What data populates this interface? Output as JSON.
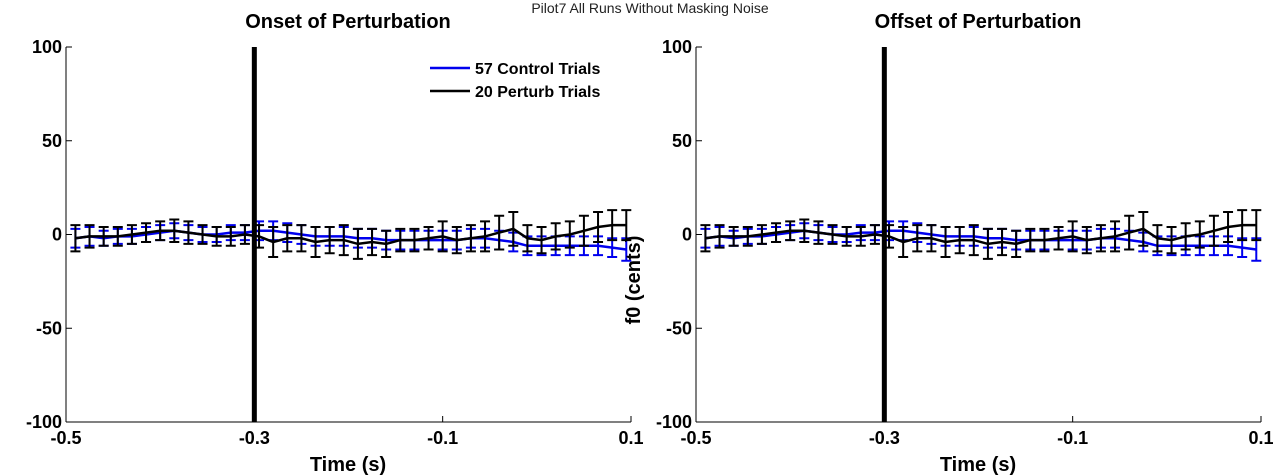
{
  "figure": {
    "suptitle": "Pilot7 All Runs Without Masking Noise"
  },
  "colors": {
    "control": "#0000ee",
    "perturb": "#000000",
    "axis": "#000000",
    "marker": "#000000"
  },
  "chart_data": [
    {
      "type": "line",
      "title": "Onset of Perturbation",
      "xlabel": "Time (s)",
      "ylabel": "f0 (cents)",
      "xlim": [
        -0.5,
        0.1
      ],
      "ylim": [
        -100,
        100
      ],
      "xticks": [
        -0.5,
        -0.3,
        -0.1,
        0.1
      ],
      "xtick_labels": [
        "-0.5",
        "-0.3",
        "-0.1",
        "0.1"
      ],
      "yticks": [
        -100,
        -50,
        0,
        50,
        100
      ],
      "ytick_labels": [
        "-100",
        "-50",
        "0",
        "50",
        "100"
      ],
      "vline_x": -0.3,
      "legend": {
        "position": "top-center",
        "entries": [
          "57 Control Trials",
          "20 Perturb Trials"
        ]
      },
      "series": [
        {
          "name": "57 Control Trials",
          "x": [
            -0.49,
            -0.475,
            -0.46,
            -0.445,
            -0.43,
            -0.415,
            -0.4,
            -0.385,
            -0.37,
            -0.355,
            -0.34,
            -0.325,
            -0.31,
            -0.295,
            -0.28,
            -0.265,
            -0.25,
            -0.235,
            -0.22,
            -0.205,
            -0.19,
            -0.175,
            -0.16,
            -0.145,
            -0.13,
            -0.115,
            -0.1,
            -0.085,
            -0.07,
            -0.055,
            -0.04,
            -0.025,
            -0.01,
            0.005,
            0.02,
            0.035,
            0.05,
            0.065,
            0.08,
            0.095
          ],
          "y": [
            -2,
            -1,
            -2,
            -1,
            -1,
            0,
            1,
            2,
            1,
            0,
            0,
            1,
            1,
            2,
            2,
            1,
            0,
            -1,
            -1,
            -1,
            -2,
            -2,
            -3,
            -3,
            -3,
            -3,
            -3,
            -3,
            -2,
            -2,
            -3,
            -4,
            -6,
            -6,
            -6,
            -6,
            -6,
            -6,
            -7,
            -8
          ],
          "err": [
            5,
            5,
            4,
            4,
            4,
            4,
            4,
            4,
            4,
            4,
            4,
            4,
            4,
            5,
            5,
            5,
            5,
            5,
            5,
            5,
            5,
            5,
            5,
            5,
            5,
            5,
            5,
            5,
            5,
            5,
            5,
            5,
            5,
            5,
            5,
            5,
            5,
            5,
            5,
            6
          ]
        },
        {
          "name": "20 Perturb Trials",
          "x": [
            -0.49,
            -0.475,
            -0.46,
            -0.445,
            -0.43,
            -0.415,
            -0.4,
            -0.385,
            -0.37,
            -0.355,
            -0.34,
            -0.325,
            -0.31,
            -0.295,
            -0.28,
            -0.265,
            -0.25,
            -0.235,
            -0.22,
            -0.205,
            -0.19,
            -0.175,
            -0.16,
            -0.145,
            -0.13,
            -0.115,
            -0.1,
            -0.085,
            -0.07,
            -0.055,
            -0.04,
            -0.025,
            -0.01,
            0.005,
            0.02,
            0.035,
            0.05,
            0.065,
            0.08,
            0.095
          ],
          "y": [
            -2,
            -1,
            -1,
            -1,
            0,
            1,
            2,
            2,
            1,
            0,
            -1,
            -1,
            0,
            -1,
            -4,
            -2,
            -2,
            -4,
            -3,
            -3,
            -5,
            -4,
            -5,
            -3,
            -3,
            -2,
            -1,
            -3,
            -2,
            -1,
            1,
            3,
            -2,
            -3,
            -1,
            0,
            2,
            4,
            5,
            5
          ],
          "err": [
            7,
            6,
            5,
            5,
            5,
            5,
            5,
            6,
            6,
            5,
            5,
            5,
            5,
            6,
            8,
            7,
            7,
            8,
            7,
            8,
            8,
            7,
            7,
            6,
            6,
            6,
            8,
            7,
            7,
            8,
            9,
            9,
            7,
            7,
            7,
            7,
            8,
            8,
            8,
            8
          ]
        }
      ]
    },
    {
      "type": "line",
      "title": "Offset of Perturbation",
      "xlabel": "Time (s)",
      "ylabel": "f0 (cents)",
      "xlim": [
        -0.5,
        0.1
      ],
      "ylim": [
        -100,
        100
      ],
      "xticks": [
        -0.5,
        -0.3,
        -0.1,
        0.1
      ],
      "xtick_labels": [
        "-0.5",
        "-0.3",
        "-0.1",
        "0.1"
      ],
      "yticks": [
        -100,
        -50,
        0,
        50,
        100
      ],
      "ytick_labels": [
        "-100",
        "-50",
        "0",
        "50",
        "100"
      ],
      "vline_x": -0.3,
      "series": [
        {
          "name": "57 Control Trials",
          "x": [
            -0.49,
            -0.475,
            -0.46,
            -0.445,
            -0.43,
            -0.415,
            -0.4,
            -0.385,
            -0.37,
            -0.355,
            -0.34,
            -0.325,
            -0.31,
            -0.295,
            -0.28,
            -0.265,
            -0.25,
            -0.235,
            -0.22,
            -0.205,
            -0.19,
            -0.175,
            -0.16,
            -0.145,
            -0.13,
            -0.115,
            -0.1,
            -0.085,
            -0.07,
            -0.055,
            -0.04,
            -0.025,
            -0.01,
            0.005,
            0.02,
            0.035,
            0.05,
            0.065,
            0.08,
            0.095
          ],
          "y": [
            -2,
            -1,
            -2,
            -1,
            -1,
            0,
            1,
            2,
            1,
            0,
            0,
            1,
            1,
            2,
            2,
            1,
            0,
            -1,
            -1,
            -1,
            -2,
            -2,
            -3,
            -3,
            -3,
            -3,
            -3,
            -3,
            -2,
            -2,
            -3,
            -4,
            -6,
            -6,
            -6,
            -6,
            -6,
            -6,
            -7,
            -8
          ],
          "err": [
            5,
            5,
            4,
            4,
            4,
            4,
            4,
            4,
            4,
            4,
            4,
            4,
            4,
            5,
            5,
            5,
            5,
            5,
            5,
            5,
            5,
            5,
            5,
            5,
            5,
            5,
            5,
            5,
            5,
            5,
            5,
            5,
            5,
            5,
            5,
            5,
            5,
            5,
            5,
            6
          ]
        },
        {
          "name": "20 Perturb Trials",
          "x": [
            -0.49,
            -0.475,
            -0.46,
            -0.445,
            -0.43,
            -0.415,
            -0.4,
            -0.385,
            -0.37,
            -0.355,
            -0.34,
            -0.325,
            -0.31,
            -0.295,
            -0.28,
            -0.265,
            -0.25,
            -0.235,
            -0.22,
            -0.205,
            -0.19,
            -0.175,
            -0.16,
            -0.145,
            -0.13,
            -0.115,
            -0.1,
            -0.085,
            -0.07,
            -0.055,
            -0.04,
            -0.025,
            -0.01,
            0.005,
            0.02,
            0.035,
            0.05,
            0.065,
            0.08,
            0.095
          ],
          "y": [
            -2,
            -1,
            -1,
            -1,
            0,
            1,
            2,
            2,
            1,
            0,
            -1,
            -1,
            0,
            -1,
            -4,
            -2,
            -2,
            -4,
            -3,
            -3,
            -5,
            -4,
            -5,
            -3,
            -3,
            -2,
            -1,
            -3,
            -2,
            -1,
            1,
            3,
            -2,
            -3,
            -1,
            0,
            2,
            4,
            5,
            5
          ],
          "err": [
            7,
            6,
            5,
            5,
            5,
            5,
            5,
            6,
            6,
            5,
            5,
            5,
            5,
            6,
            8,
            7,
            7,
            8,
            7,
            8,
            8,
            7,
            7,
            6,
            6,
            6,
            8,
            7,
            7,
            8,
            9,
            9,
            7,
            7,
            7,
            7,
            8,
            8,
            8,
            8
          ]
        }
      ]
    }
  ]
}
